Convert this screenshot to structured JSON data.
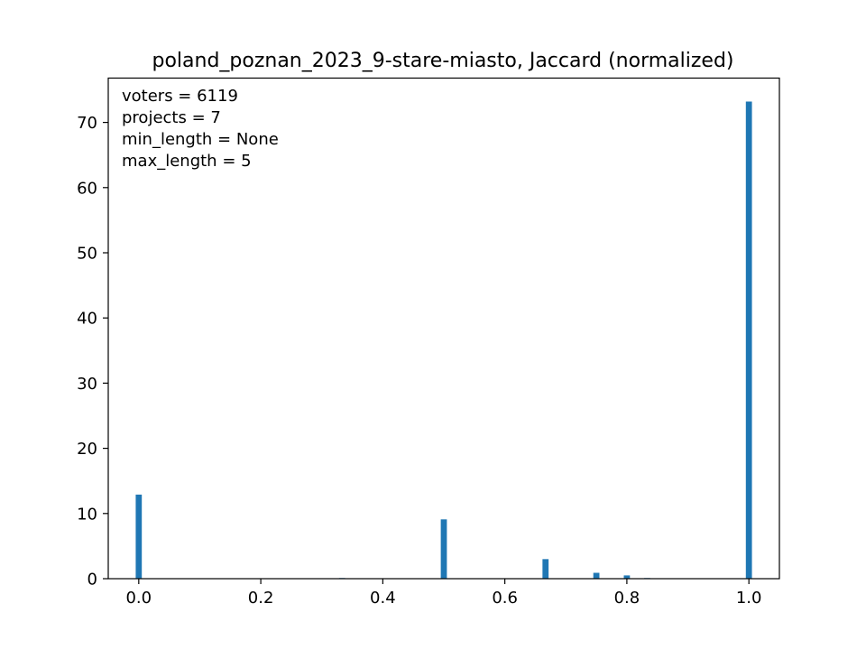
{
  "chart_data": {
    "type": "bar",
    "title": "poland_poznan_2023_9-stare-miasto, Jaccard (normalized)",
    "xlabel": "",
    "ylabel": "",
    "xlim": [
      -0.05,
      1.05
    ],
    "ylim": [
      0,
      76.8
    ],
    "bar_width": 0.01,
    "bar_color": "#1f77b4",
    "x": [
      0.0,
      0.3333,
      0.5,
      0.6667,
      0.75,
      0.8,
      0.8333,
      1.0
    ],
    "values": [
      12.9,
      0.1,
      9.1,
      3.0,
      0.9,
      0.5,
      0.1,
      73.2
    ],
    "xticks": [
      0.0,
      0.2,
      0.4,
      0.6,
      0.8,
      1.0
    ],
    "xtick_labels": [
      "0.0",
      "0.2",
      "0.4",
      "0.6",
      "0.8",
      "1.0"
    ],
    "yticks": [
      0,
      10,
      20,
      30,
      40,
      50,
      60,
      70
    ],
    "ytick_labels": [
      "0",
      "10",
      "20",
      "30",
      "40",
      "50",
      "60",
      "70"
    ],
    "annotations": [
      "voters = 6119",
      "projects = 7",
      "min_length = None",
      "max_length = 5"
    ],
    "grid": false,
    "legend": "none"
  }
}
